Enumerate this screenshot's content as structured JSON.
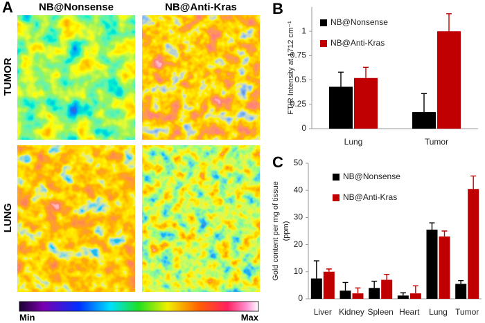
{
  "panel_a": {
    "label": "A",
    "columns": [
      "NB@Nonsense",
      "NB@Anti-Kras"
    ],
    "rows": [
      "TUMOR",
      "LUNG"
    ],
    "colorbar": {
      "min": "Min",
      "max": "Max"
    }
  },
  "chart_data": [
    {
      "type": "bar",
      "panel_label": "B",
      "ylabel": [
        "FTIR Intensity at 1712 cm⁻¹"
      ],
      "categories": [
        "Lung",
        "Tumor"
      ],
      "series": [
        {
          "name": "NB@Nonsense",
          "color": "#000000",
          "values": [
            0.43,
            0.17
          ],
          "errors": [
            0.15,
            0.19
          ]
        },
        {
          "name": "NB@Anti-Kras",
          "color": "#c00000",
          "values": [
            0.52,
            1.0
          ],
          "errors": [
            0.11,
            0.18
          ]
        }
      ],
      "ylim": [
        0,
        1.25
      ],
      "yticks": [
        0,
        0.25,
        0.5,
        0.75,
        1
      ],
      "legend": "upper left"
    },
    {
      "type": "bar",
      "panel_label": "C",
      "ylabel": [
        "Gold content per mg of tissue",
        "(ppm)"
      ],
      "categories": [
        "Liver",
        "Kidney",
        "Spleen",
        "Heart",
        "Lung",
        "Tumor"
      ],
      "series": [
        {
          "name": "NB@Nonsense",
          "color": "#000000",
          "values": [
            7.5,
            3,
            4,
            1.2,
            25.5,
            5.5
          ],
          "errors": [
            6.5,
            3,
            2.5,
            1,
            2.5,
            1.2
          ]
        },
        {
          "name": "NB@Anti-Kras",
          "color": "#c00000",
          "values": [
            10,
            2,
            7,
            2,
            23,
            40.5
          ],
          "errors": [
            1,
            2,
            2,
            2.8,
            2,
            4.8
          ]
        }
      ],
      "ylim": [
        0,
        50
      ],
      "yticks": [
        0,
        10,
        20,
        30,
        40,
        50
      ],
      "legend": "upper left"
    }
  ]
}
